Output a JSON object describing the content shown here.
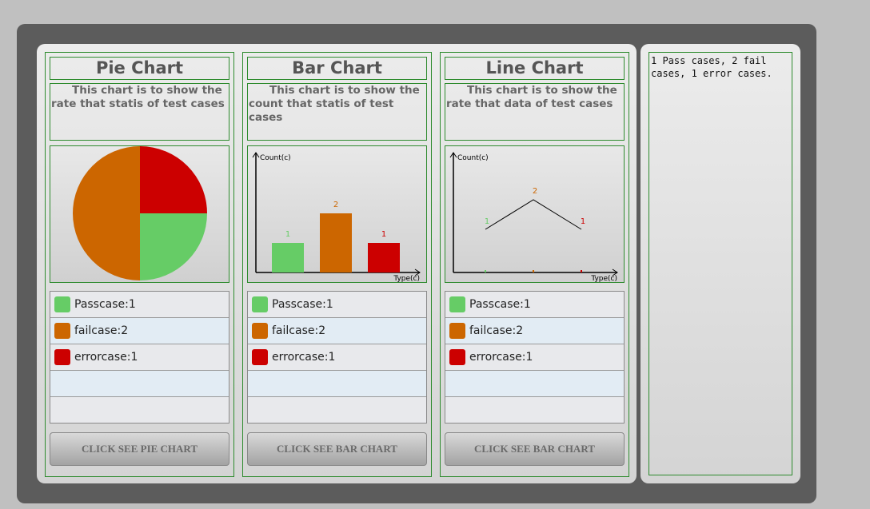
{
  "side_text": "1 Pass cases, 2 fail cases, 1 error cases.",
  "colors": {
    "pass": "#66cc66",
    "fail": "#cc6600",
    "error": "#cc0000"
  },
  "legend": [
    {
      "label": "Passcase:1",
      "color": "#66cc66"
    },
    {
      "label": "failcase:2",
      "color": "#cc6600"
    },
    {
      "label": "errorcase:1",
      "color": "#cc0000"
    }
  ],
  "pie_column": {
    "title": "Pie Chart",
    "description": "This chart is to show the rate that statis of test cases",
    "button": "CLICK SEE PIE CHART"
  },
  "bar_column": {
    "title": "Bar Chart",
    "description": "This chart is to show the count that statis of test cases",
    "button": "CLICK SEE BAR CHART"
  },
  "line_column": {
    "title": "Line Chart",
    "description": "This chart is to show the rate that data of test cases",
    "button": "CLICK SEE BAR CHART"
  },
  "chart_data": [
    {
      "type": "pie",
      "categories": [
        "Passcase",
        "failcase",
        "errorcase"
      ],
      "values": [
        1,
        2,
        1
      ],
      "colors": [
        "#66cc66",
        "#cc6600",
        "#cc0000"
      ]
    },
    {
      "type": "bar",
      "categories": [
        "Passcase",
        "failcase",
        "errorcase"
      ],
      "values": [
        1,
        2,
        1
      ],
      "colors": [
        "#66cc66",
        "#cc6600",
        "#cc0000"
      ],
      "ylabel": "Count(c)",
      "xlabel": "Type(c)"
    },
    {
      "type": "line",
      "categories": [
        "Passcase",
        "failcase",
        "errorcase"
      ],
      "values": [
        1,
        2,
        1
      ],
      "colors": [
        "#66cc66",
        "#cc6600",
        "#cc0000"
      ],
      "ylabel": "Count(c)",
      "xlabel": "Type(c)"
    }
  ]
}
